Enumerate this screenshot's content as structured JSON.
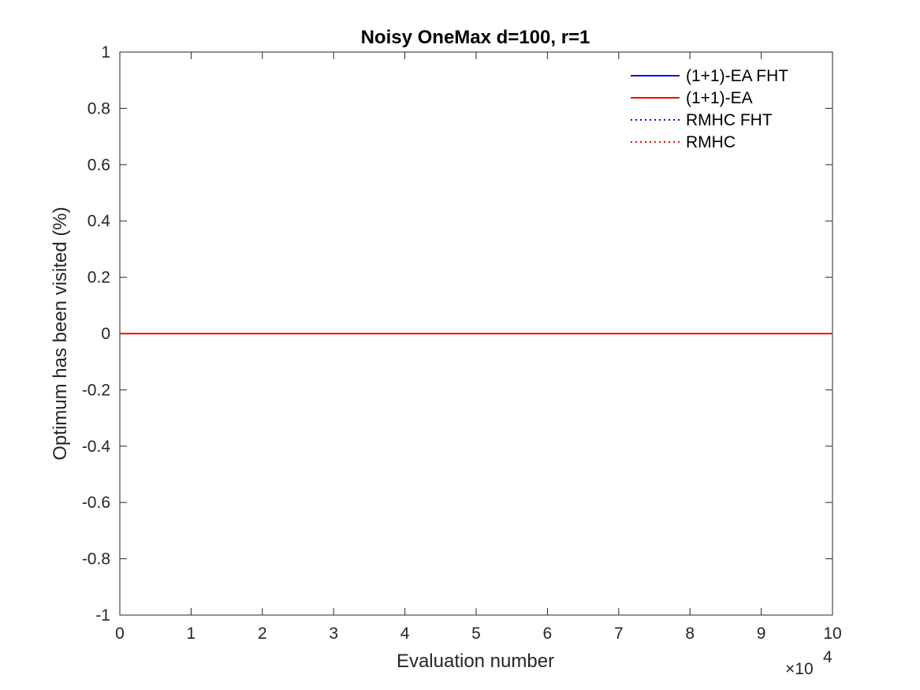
{
  "chart_data": {
    "type": "line",
    "title": "Noisy OneMax d=100, r=1",
    "xlabel": "Evaluation number",
    "ylabel": "Optimum has been visited (%)",
    "x_multiplier": {
      "base": "×10",
      "exponent": "4"
    },
    "xlim": [
      0,
      100000
    ],
    "ylim": [
      -1,
      1
    ],
    "xticks": [
      0,
      10000,
      20000,
      30000,
      40000,
      50000,
      60000,
      70000,
      80000,
      90000,
      100000
    ],
    "xtick_labels": [
      "0",
      "1",
      "2",
      "3",
      "4",
      "5",
      "6",
      "7",
      "8",
      "9",
      "10"
    ],
    "yticks": [
      -1,
      -0.8,
      -0.6,
      -0.4,
      -0.2,
      0,
      0.2,
      0.4,
      0.6,
      0.8,
      1
    ],
    "ytick_labels": [
      "-1",
      "-0.8",
      "-0.6",
      "-0.4",
      "-0.2",
      "0",
      "0.2",
      "0.4",
      "0.6",
      "0.8",
      "1"
    ],
    "grid": false,
    "legend_position": "top-right",
    "x": [
      0,
      100000
    ],
    "series": [
      {
        "name": "(1+1)-EA FHT",
        "values": [
          0,
          0
        ],
        "color": "#0000ff",
        "style": "solid"
      },
      {
        "name": "(1+1)-EA",
        "values": [
          0,
          0
        ],
        "color": "#ff0000",
        "style": "solid"
      },
      {
        "name": "RMHC FHT",
        "values": [
          0,
          0
        ],
        "color": "#0000ff",
        "style": "dotted"
      },
      {
        "name": "RMHC",
        "values": [
          0,
          0
        ],
        "color": "#ff0000",
        "style": "dotted"
      }
    ]
  }
}
